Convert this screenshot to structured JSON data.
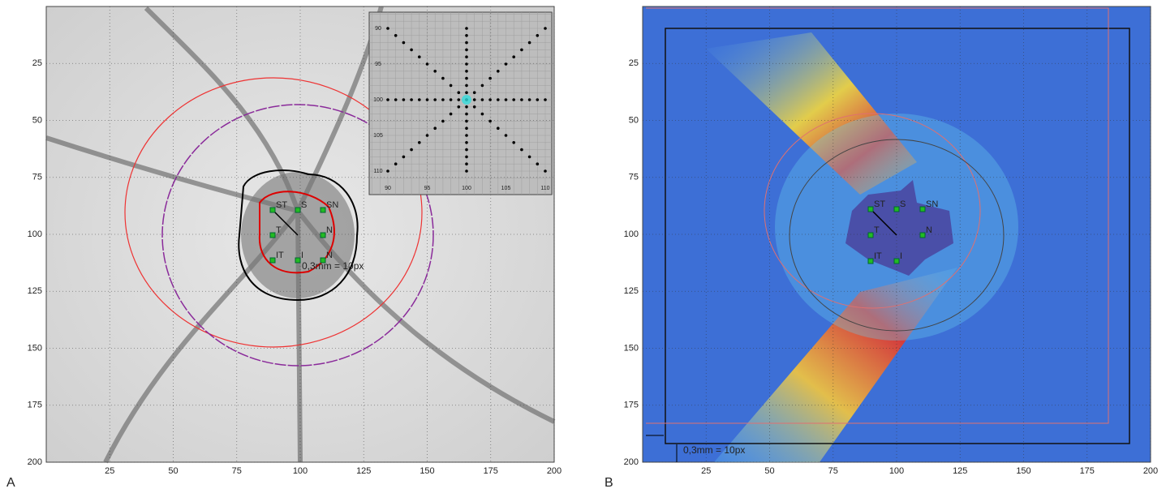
{
  "panels": [
    {
      "letter": "A",
      "xticks": [
        25,
        50,
        75,
        100,
        125,
        150,
        175,
        200
      ],
      "yticks": [
        25,
        50,
        75,
        100,
        125,
        150,
        175,
        200
      ],
      "point_labels": [
        "ST",
        "S",
        "SN",
        "T",
        "N",
        "IT",
        "I",
        "N"
      ],
      "scale_label": "0,3mm = 10px",
      "inset": {
        "xticks": [
          90,
          95,
          100,
          105,
          110
        ],
        "yticks": [
          90,
          95,
          100,
          105,
          110
        ]
      }
    },
    {
      "letter": "B",
      "xticks": [
        25,
        50,
        75,
        100,
        125,
        150,
        175,
        200
      ],
      "yticks": [
        25,
        50,
        75,
        100,
        125,
        150,
        175,
        200
      ],
      "point_labels": [
        "ST",
        "S",
        "SN",
        "T",
        "N",
        "IT",
        "I"
      ],
      "scale_label": "0,3mm = 10px"
    }
  ]
}
